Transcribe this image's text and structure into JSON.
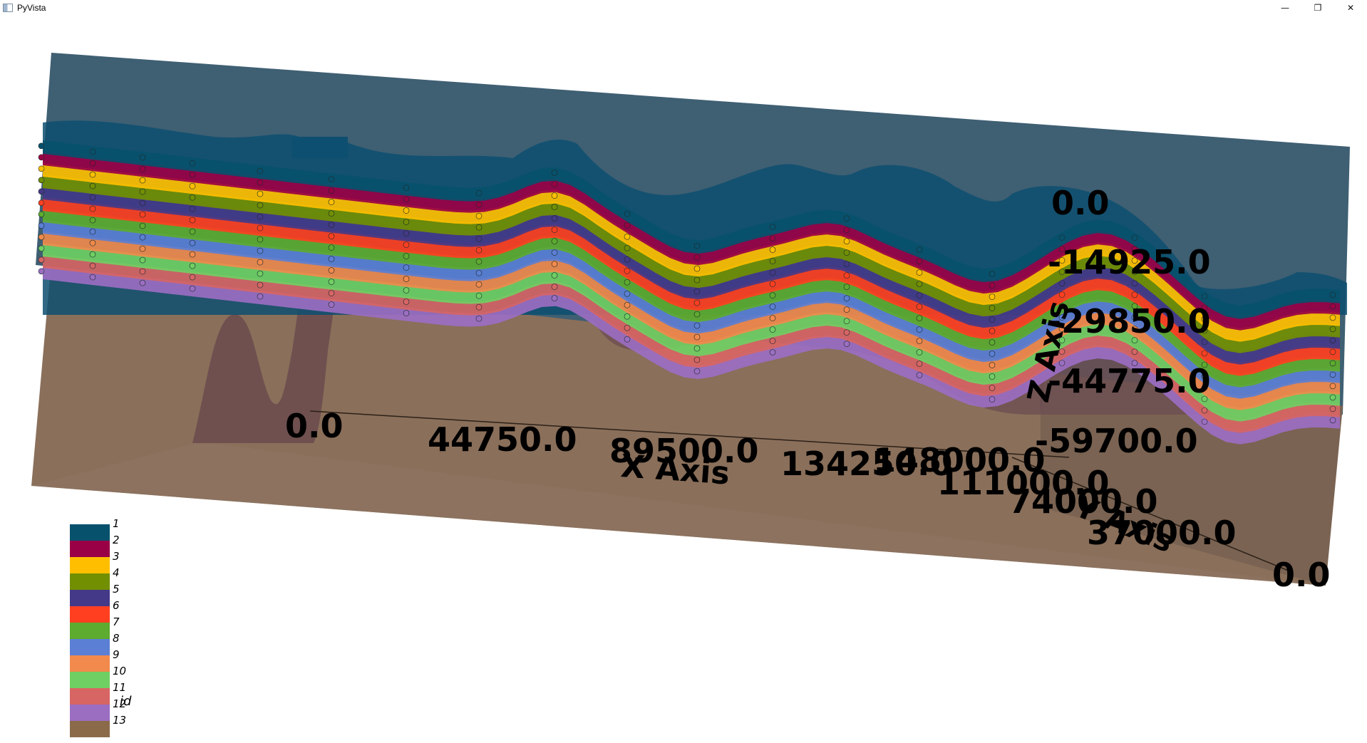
{
  "window": {
    "title": "PyVista",
    "minimize_glyph": "—",
    "restore_glyph": "❐",
    "close_glyph": "✕"
  },
  "scene": {
    "x_axis": {
      "title": "X Axis",
      "ticks": [
        "0.0",
        "44750.0",
        "89500.0",
        "134250.0",
        "148000.0"
      ]
    },
    "y_axis": {
      "title": "Y Axis",
      "ticks": [
        "0.0",
        "37000.0",
        "74000.0",
        "111000.0"
      ]
    },
    "z_axis": {
      "title": "Z Axis",
      "ticks": [
        "0.0",
        "-14925.0",
        "-29850.0",
        "-44775.0",
        "-59700.0"
      ]
    },
    "legend": {
      "title": "id",
      "entries": [
        {
          "label": "1",
          "color": "#08516d"
        },
        {
          "label": "2",
          "color": "#9a0045"
        },
        {
          "label": "3",
          "color": "#ffbf00"
        },
        {
          "label": "4",
          "color": "#728f02"
        },
        {
          "label": "5",
          "color": "#443988"
        },
        {
          "label": "6",
          "color": "#ff3f20"
        },
        {
          "label": "7",
          "color": "#5dab2f"
        },
        {
          "label": "8",
          "color": "#5b7fd4"
        },
        {
          "label": "9",
          "color": "#f18a4c"
        },
        {
          "label": "10",
          "color": "#70cf63"
        },
        {
          "label": "11",
          "color": "#d76564"
        },
        {
          "label": "12",
          "color": "#9b6ec2"
        },
        {
          "label": "13",
          "color": "#8b6a4a"
        }
      ]
    }
  }
}
